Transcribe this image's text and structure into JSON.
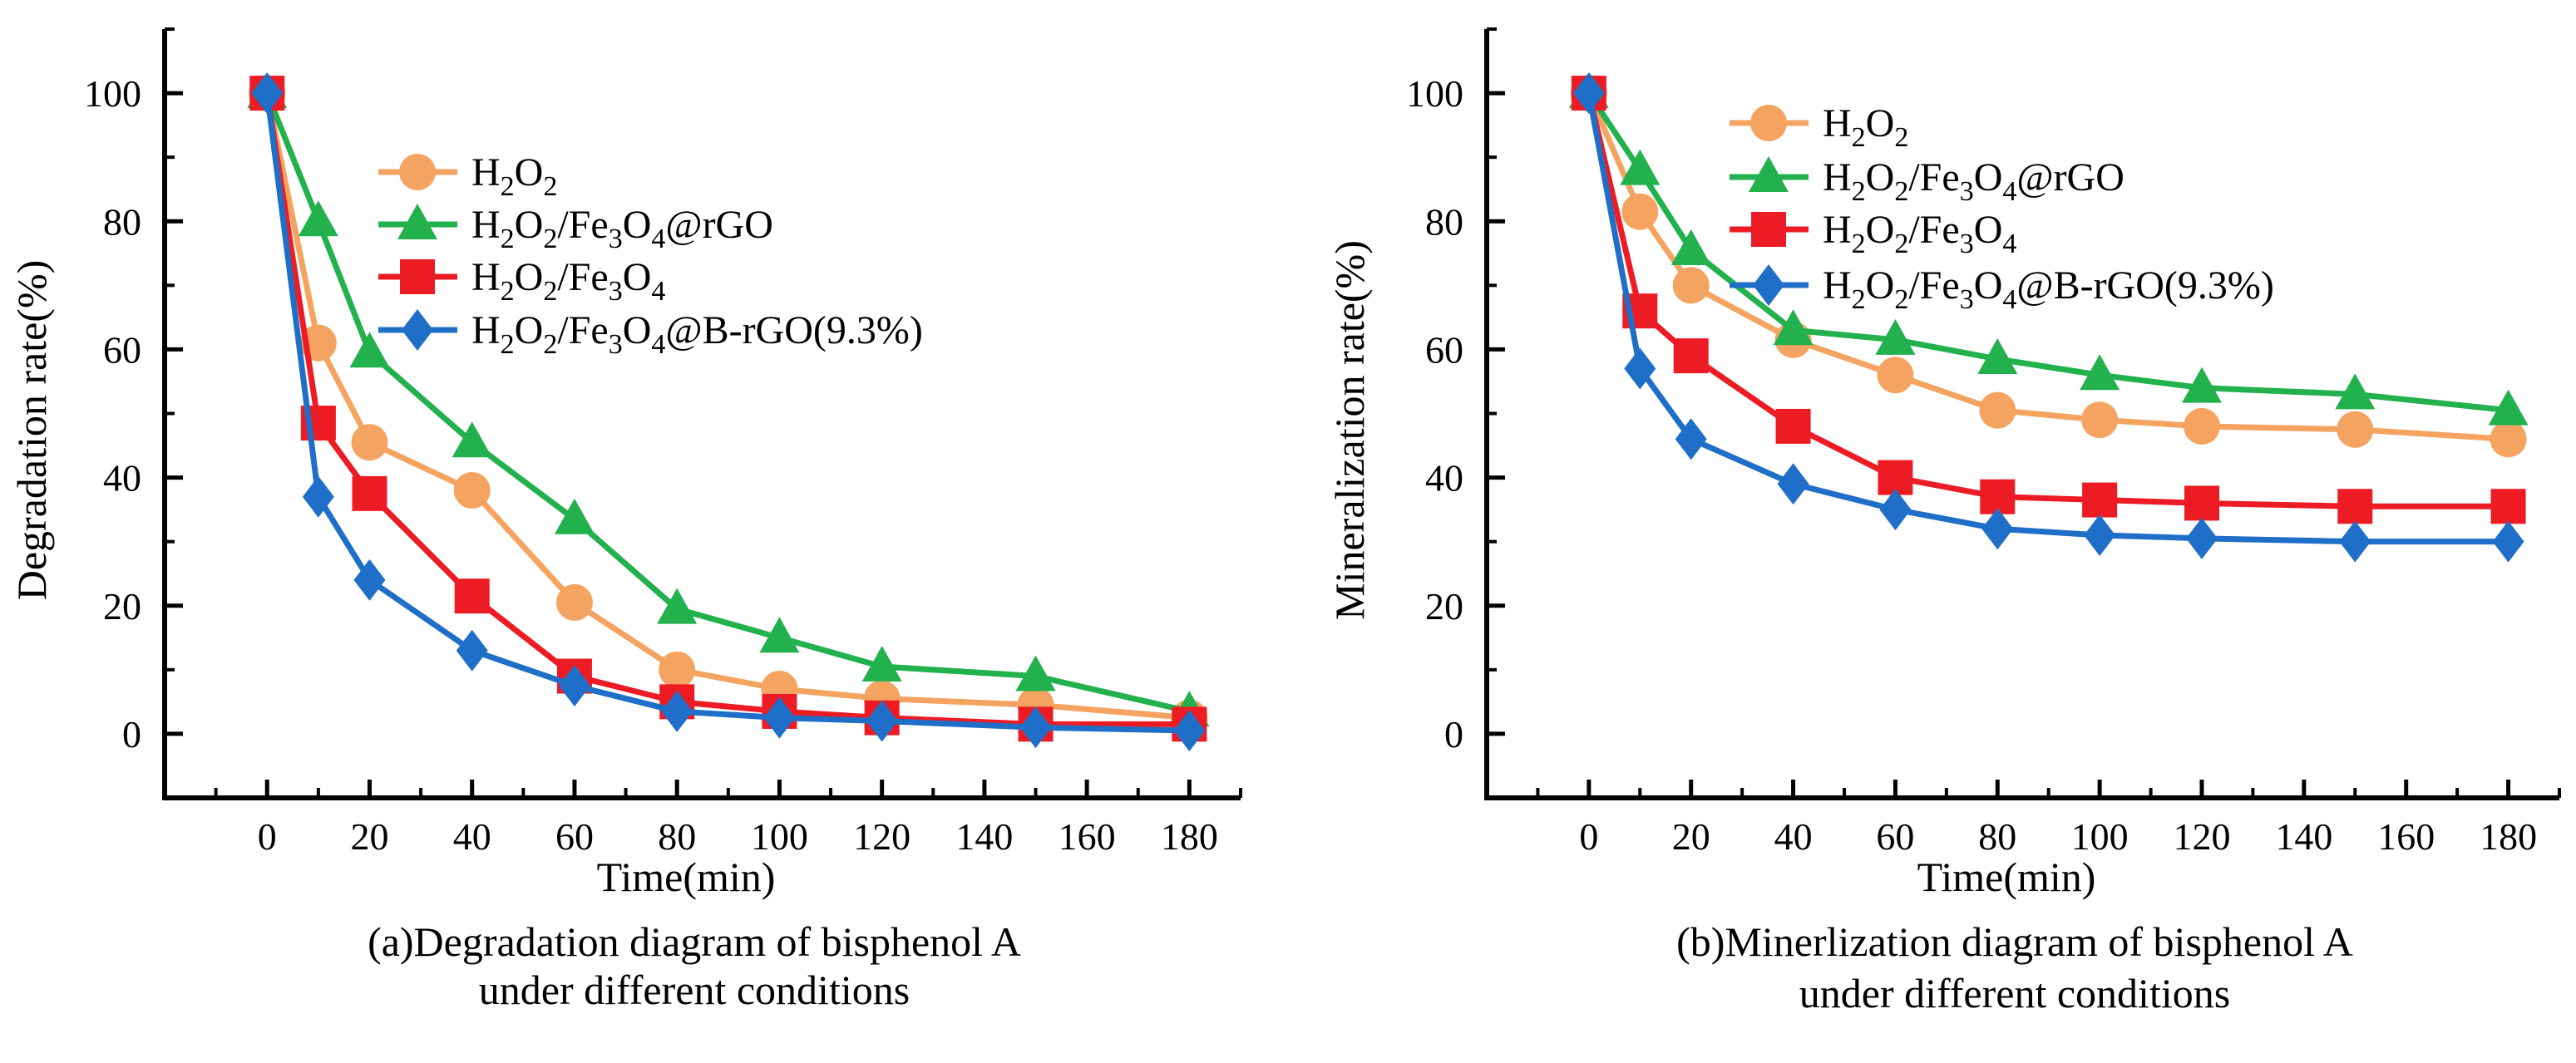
{
  "charts": [
    {
      "caption_line1": "(a)Degradation diagram of bisphenol A",
      "caption_line2": "under different conditions",
      "chart_data": {
        "type": "line",
        "title": "(a)Degradation diagram of bisphenol A under different conditions",
        "xlabel": "Time(min)",
        "ylabel": "Degradation rate(%)",
        "xlim": [
          -20,
          190
        ],
        "ylim": [
          -10,
          110
        ],
        "xticks": [
          0,
          20,
          40,
          60,
          80,
          100,
          120,
          140,
          160,
          180
        ],
        "xtick_labels": [
          "0",
          "20",
          "40",
          "60",
          "80",
          "100",
          "120",
          "140",
          "160",
          "180"
        ],
        "yticks": [
          0,
          20,
          40,
          60,
          80,
          100
        ],
        "ytick_labels": [
          "0",
          "20",
          "40",
          "60",
          "80",
          "100"
        ],
        "legend_position": "upper-center",
        "series": [
          {
            "name": "H2O2",
            "color": "#f4a460",
            "marker": "circle",
            "x": [
              0,
              10,
              20,
              40,
              60,
              80,
              100,
              120,
              150,
              180
            ],
            "values": [
              100,
              61,
              45.5,
              38,
              20.5,
              10,
              7,
              5.5,
              4.5,
              2.5
            ]
          },
          {
            "name": "H2O2/Fe3O4@rGO",
            "color": "#22b14c",
            "marker": "triangle",
            "x": [
              0,
              10,
              20,
              40,
              60,
              80,
              100,
              120,
              150,
              180
            ],
            "values": [
              100,
              80,
              59.5,
              45.5,
              33.5,
              19.5,
              15,
              10.5,
              9,
              3.5
            ]
          },
          {
            "name": "H2O2/Fe3O4",
            "color": "#ed1c24",
            "marker": "square",
            "x": [
              0,
              10,
              20,
              40,
              60,
              80,
              100,
              120,
              150,
              180
            ],
            "values": [
              100,
              48.5,
              37.5,
              21.5,
              9,
              5,
              3.5,
              2.5,
              1.5,
              1.5
            ]
          },
          {
            "name": "H2O2/Fe3O4@B-rGO(9.3%)",
            "color": "#1f6fc8",
            "marker": "diamond",
            "x": [
              0,
              10,
              20,
              40,
              60,
              80,
              100,
              120,
              150,
              180
            ],
            "values": [
              100,
              37,
              24,
              13,
              7.5,
              3.5,
              2.5,
              2,
              1,
              0.5
            ]
          }
        ]
      }
    },
    {
      "caption_line1": "(b)Minerlization diagram of bisphenol A",
      "caption_line2": "under different conditions",
      "chart_data": {
        "type": "line",
        "title": "(b)Minerlization diagram of bisphenol A under different conditions",
        "xlabel": "Time(min)",
        "ylabel": "Mineralization rate(%)",
        "xlim": [
          -20,
          190
        ],
        "ylim": [
          -10,
          110
        ],
        "xticks": [
          0,
          20,
          40,
          60,
          80,
          100,
          120,
          140,
          160,
          180
        ],
        "xtick_labels": [
          "0",
          "20",
          "40",
          "60",
          "80",
          "100",
          "120",
          "140",
          "160",
          "180"
        ],
        "yticks": [
          0,
          20,
          40,
          60,
          80,
          100
        ],
        "ytick_labels": [
          "0",
          "20",
          "40",
          "60",
          "80",
          "100"
        ],
        "legend_position": "upper-center",
        "series": [
          {
            "name": "H2O2",
            "color": "#f4a460",
            "marker": "circle",
            "x": [
              0,
              10,
              20,
              40,
              60,
              80,
              100,
              120,
              150,
              180
            ],
            "values": [
              100,
              81.5,
              70,
              61.5,
              56,
              50.5,
              49,
              48,
              47.5,
              46
            ]
          },
          {
            "name": "H2O2/Fe3O4@rGO",
            "color": "#22b14c",
            "marker": "triangle",
            "x": [
              0,
              10,
              20,
              40,
              60,
              80,
              100,
              120,
              150,
              180
            ],
            "values": [
              100,
              88,
              75.5,
              63,
              61.5,
              58.5,
              56,
              54,
              53,
              50.5
            ]
          },
          {
            "name": "H2O2/Fe3O4",
            "color": "#ed1c24",
            "marker": "square",
            "x": [
              0,
              10,
              20,
              40,
              60,
              80,
              100,
              120,
              150,
              180
            ],
            "values": [
              100,
              66,
              59,
              48,
              40,
              37,
              36.5,
              36,
              35.5,
              35.5
            ]
          },
          {
            "name": "H2O2/Fe3O4@B-rGO(9.3%)",
            "color": "#1f6fc8",
            "marker": "diamond",
            "x": [
              0,
              10,
              20,
              40,
              60,
              80,
              100,
              120,
              150,
              180
            ],
            "values": [
              100,
              57,
              46,
              39,
              35,
              32,
              31,
              30.5,
              30,
              30
            ]
          }
        ]
      }
    }
  ]
}
